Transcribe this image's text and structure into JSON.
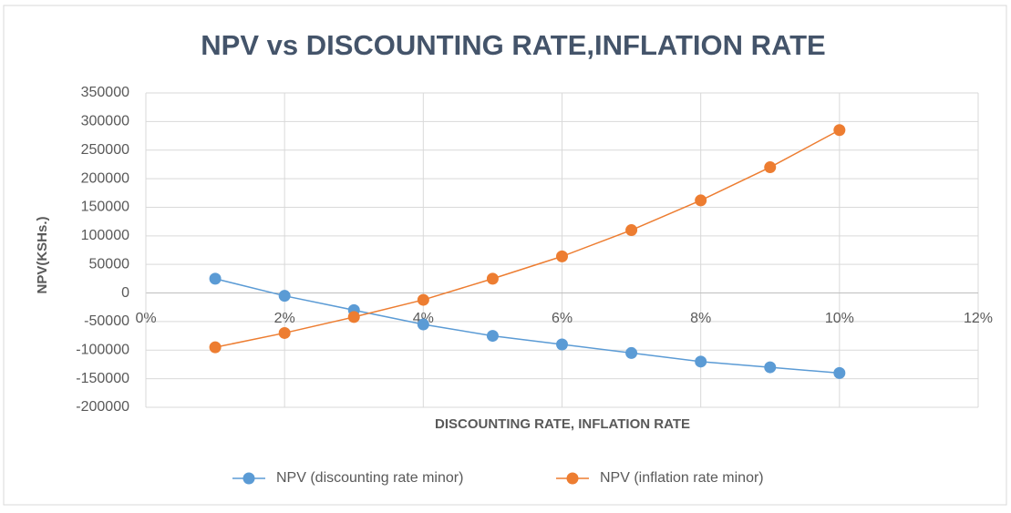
{
  "chart_data": {
    "type": "line",
    "title": "NPV vs DISCOUNTING RATE,INFLATION RATE",
    "x_label": "DISCOUNTING RATE, INFLATION RATE",
    "y_label": "NPV(KSHs.)",
    "x": [
      1,
      2,
      3,
      4,
      5,
      6,
      7,
      8,
      9,
      10
    ],
    "series": [
      {
        "name": "NPV (discounting rate  minor)",
        "color": "#5b9bd5",
        "values": [
          25000,
          -5000,
          -30000,
          -55000,
          -75000,
          -90000,
          -105000,
          -120000,
          -130000,
          -140000
        ]
      },
      {
        "name": "NPV (inflation rate minor)",
        "color": "#ed7d31",
        "values": [
          -95000,
          -70000,
          -42000,
          -12000,
          25000,
          64000,
          110000,
          162000,
          220000,
          285000
        ]
      }
    ],
    "xlim": [
      0,
      12
    ],
    "xticks": [
      {
        "value": 0,
        "label": "0%"
      },
      {
        "value": 2,
        "label": "2%"
      },
      {
        "value": 4,
        "label": "4%"
      },
      {
        "value": 6,
        "label": "6%"
      },
      {
        "value": 8,
        "label": "8%"
      },
      {
        "value": 10,
        "label": "10%"
      },
      {
        "value": 12,
        "label": "12%"
      }
    ],
    "ylim": [
      -200000,
      350000
    ],
    "yticks": [
      -200000,
      -150000,
      -100000,
      -50000,
      0,
      50000,
      100000,
      150000,
      200000,
      250000,
      300000,
      350000
    ],
    "grid": true,
    "legend": "bottom"
  }
}
